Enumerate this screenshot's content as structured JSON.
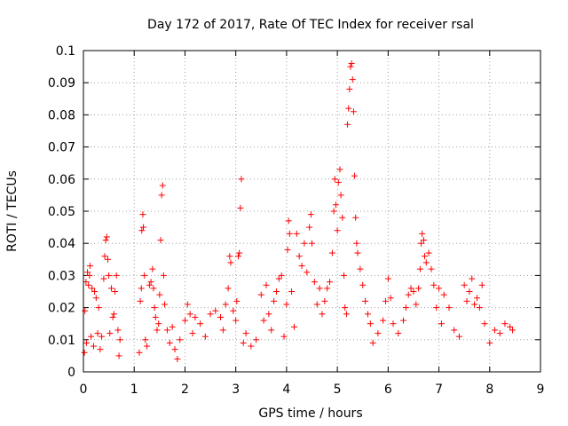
{
  "chart_data": {
    "type": "scatter",
    "title": "Day 172 of 2017, Rate Of TEC Index for receiver rsal",
    "xlabel": "GPS time / hours",
    "ylabel": "ROTI / TECUs",
    "xlim": [
      0,
      9
    ],
    "ylim": [
      0,
      0.1
    ],
    "xticks": [
      "0",
      "1",
      "2",
      "3",
      "4",
      "5",
      "6",
      "7",
      "8",
      "9"
    ],
    "yticks": [
      "0",
      "0.01",
      "0.02",
      "0.03",
      "0.04",
      "0.05",
      "0.06",
      "0.07",
      "0.08",
      "0.09",
      "0.1"
    ],
    "grid": true,
    "marker": "+",
    "color": "#ff0000",
    "series": [
      {
        "name": "ROTI",
        "points": [
          [
            0.02,
            0.006
          ],
          [
            0.03,
            0.019
          ],
          [
            0.05,
            0.028
          ],
          [
            0.06,
            0.009
          ],
          [
            0.08,
            0.031
          ],
          [
            0.1,
            0.027
          ],
          [
            0.12,
            0.03
          ],
          [
            0.13,
            0.033
          ],
          [
            0.15,
            0.011
          ],
          [
            0.17,
            0.026
          ],
          [
            0.2,
            0.008
          ],
          [
            0.22,
            0.025
          ],
          [
            0.25,
            0.023
          ],
          [
            0.28,
            0.012
          ],
          [
            0.3,
            0.02
          ],
          [
            0.33,
            0.007
          ],
          [
            0.36,
            0.011
          ],
          [
            0.4,
            0.029
          ],
          [
            0.42,
            0.036
          ],
          [
            0.44,
            0.041
          ],
          [
            0.46,
            0.042
          ],
          [
            0.48,
            0.035
          ],
          [
            0.5,
            0.03
          ],
          [
            0.52,
            0.012
          ],
          [
            0.55,
            0.026
          ],
          [
            0.58,
            0.017
          ],
          [
            0.6,
            0.018
          ],
          [
            0.62,
            0.025
          ],
          [
            0.65,
            0.03
          ],
          [
            0.68,
            0.013
          ],
          [
            0.7,
            0.005
          ],
          [
            0.72,
            0.01
          ],
          [
            1.1,
            0.006
          ],
          [
            1.12,
            0.022
          ],
          [
            1.14,
            0.026
          ],
          [
            1.15,
            0.044
          ],
          [
            1.17,
            0.049
          ],
          [
            1.18,
            0.045
          ],
          [
            1.2,
            0.03
          ],
          [
            1.22,
            0.01
          ],
          [
            1.25,
            0.008
          ],
          [
            1.3,
            0.027
          ],
          [
            1.33,
            0.028
          ],
          [
            1.36,
            0.032
          ],
          [
            1.38,
            0.026
          ],
          [
            1.4,
            0.02
          ],
          [
            1.42,
            0.017
          ],
          [
            1.45,
            0.013
          ],
          [
            1.48,
            0.015
          ],
          [
            1.5,
            0.024
          ],
          [
            1.52,
            0.041
          ],
          [
            1.54,
            0.055
          ],
          [
            1.56,
            0.058
          ],
          [
            1.58,
            0.03
          ],
          [
            1.6,
            0.021
          ],
          [
            1.65,
            0.013
          ],
          [
            1.7,
            0.009
          ],
          [
            1.75,
            0.014
          ],
          [
            1.8,
            0.007
          ],
          [
            1.85,
            0.004
          ],
          [
            1.9,
            0.01
          ],
          [
            2.0,
            0.016
          ],
          [
            2.05,
            0.021
          ],
          [
            2.1,
            0.018
          ],
          [
            2.15,
            0.012
          ],
          [
            2.2,
            0.017
          ],
          [
            2.3,
            0.015
          ],
          [
            2.4,
            0.011
          ],
          [
            2.5,
            0.018
          ],
          [
            2.6,
            0.019
          ],
          [
            2.7,
            0.017
          ],
          [
            2.75,
            0.013
          ],
          [
            2.8,
            0.021
          ],
          [
            2.85,
            0.026
          ],
          [
            2.88,
            0.036
          ],
          [
            2.9,
            0.034
          ],
          [
            2.95,
            0.019
          ],
          [
            3.0,
            0.016
          ],
          [
            3.02,
            0.022
          ],
          [
            3.05,
            0.036
          ],
          [
            3.07,
            0.037
          ],
          [
            3.09,
            0.051
          ],
          [
            3.11,
            0.06
          ],
          [
            3.15,
            0.009
          ],
          [
            3.2,
            0.012
          ],
          [
            3.3,
            0.008
          ],
          [
            3.4,
            0.01
          ],
          [
            3.5,
            0.024
          ],
          [
            3.55,
            0.016
          ],
          [
            3.6,
            0.027
          ],
          [
            3.65,
            0.018
          ],
          [
            3.7,
            0.013
          ],
          [
            3.75,
            0.022
          ],
          [
            3.8,
            0.025
          ],
          [
            3.85,
            0.029
          ],
          [
            3.9,
            0.03
          ],
          [
            3.95,
            0.011
          ],
          [
            4.0,
            0.021
          ],
          [
            4.02,
            0.038
          ],
          [
            4.04,
            0.047
          ],
          [
            4.06,
            0.043
          ],
          [
            4.1,
            0.025
          ],
          [
            4.15,
            0.014
          ],
          [
            4.2,
            0.043
          ],
          [
            4.25,
            0.036
          ],
          [
            4.3,
            0.033
          ],
          [
            4.35,
            0.04
          ],
          [
            4.4,
            0.031
          ],
          [
            4.45,
            0.045
          ],
          [
            4.48,
            0.049
          ],
          [
            4.5,
            0.04
          ],
          [
            4.55,
            0.028
          ],
          [
            4.6,
            0.021
          ],
          [
            4.65,
            0.026
          ],
          [
            4.7,
            0.018
          ],
          [
            4.75,
            0.022
          ],
          [
            4.8,
            0.026
          ],
          [
            4.85,
            0.028
          ],
          [
            4.9,
            0.037
          ],
          [
            4.93,
            0.05
          ],
          [
            4.95,
            0.06
          ],
          [
            4.97,
            0.052
          ],
          [
            5.0,
            0.044
          ],
          [
            5.02,
            0.059
          ],
          [
            5.05,
            0.063
          ],
          [
            5.07,
            0.055
          ],
          [
            5.1,
            0.048
          ],
          [
            5.13,
            0.03
          ],
          [
            5.15,
            0.02
          ],
          [
            5.18,
            0.018
          ],
          [
            5.2,
            0.077
          ],
          [
            5.22,
            0.082
          ],
          [
            5.24,
            0.088
          ],
          [
            5.26,
            0.095
          ],
          [
            5.28,
            0.096
          ],
          [
            5.3,
            0.091
          ],
          [
            5.32,
            0.081
          ],
          [
            5.34,
            0.061
          ],
          [
            5.36,
            0.048
          ],
          [
            5.38,
            0.04
          ],
          [
            5.4,
            0.037
          ],
          [
            5.45,
            0.032
          ],
          [
            5.5,
            0.027
          ],
          [
            5.55,
            0.022
          ],
          [
            5.6,
            0.018
          ],
          [
            5.65,
            0.015
          ],
          [
            5.7,
            0.009
          ],
          [
            5.8,
            0.012
          ],
          [
            5.9,
            0.016
          ],
          [
            5.95,
            0.022
          ],
          [
            6.0,
            0.029
          ],
          [
            6.05,
            0.023
          ],
          [
            6.1,
            0.015
          ],
          [
            6.2,
            0.012
          ],
          [
            6.3,
            0.016
          ],
          [
            6.35,
            0.02
          ],
          [
            6.4,
            0.024
          ],
          [
            6.45,
            0.026
          ],
          [
            6.5,
            0.025
          ],
          [
            6.55,
            0.021
          ],
          [
            6.6,
            0.026
          ],
          [
            6.63,
            0.032
          ],
          [
            6.65,
            0.04
          ],
          [
            6.67,
            0.043
          ],
          [
            6.7,
            0.041
          ],
          [
            6.72,
            0.036
          ],
          [
            6.75,
            0.034
          ],
          [
            6.8,
            0.037
          ],
          [
            6.85,
            0.032
          ],
          [
            6.9,
            0.027
          ],
          [
            6.95,
            0.02
          ],
          [
            7.0,
            0.026
          ],
          [
            7.05,
            0.015
          ],
          [
            7.1,
            0.024
          ],
          [
            7.2,
            0.02
          ],
          [
            7.3,
            0.013
          ],
          [
            7.4,
            0.011
          ],
          [
            7.5,
            0.027
          ],
          [
            7.55,
            0.022
          ],
          [
            7.6,
            0.025
          ],
          [
            7.65,
            0.029
          ],
          [
            7.7,
            0.021
          ],
          [
            7.75,
            0.023
          ],
          [
            7.8,
            0.02
          ],
          [
            7.85,
            0.027
          ],
          [
            7.9,
            0.015
          ],
          [
            8.0,
            0.009
          ],
          [
            8.1,
            0.013
          ],
          [
            8.2,
            0.012
          ],
          [
            8.3,
            0.015
          ],
          [
            8.4,
            0.014
          ],
          [
            8.45,
            0.013
          ]
        ]
      }
    ]
  }
}
